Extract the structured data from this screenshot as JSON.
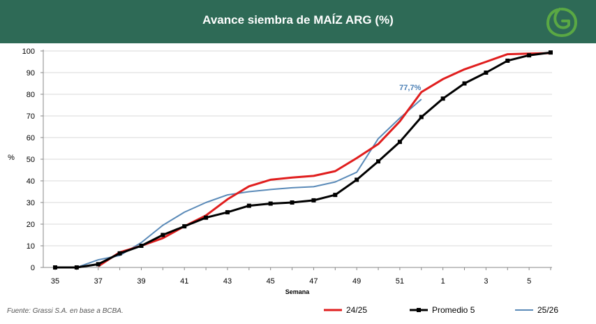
{
  "header": {
    "title": "Avance siembra de MAÍZ ARG (%)",
    "background": "#2e6a56",
    "logo_icon": "leaf-g-logo-icon"
  },
  "source_note": "Fuente: Grassi S.A. en base a BCBA.",
  "chart_data": {
    "type": "line",
    "title": "Avance siembra de MAÍZ ARG (%)",
    "xlabel": "Semana",
    "ylabel": "%",
    "ylim": [
      0,
      100
    ],
    "yticks": [
      0,
      10,
      20,
      30,
      40,
      50,
      60,
      70,
      80,
      90,
      100
    ],
    "x_ticks": [
      "35",
      "37",
      "39",
      "41",
      "43",
      "45",
      "47",
      "49",
      "51",
      "1",
      "3",
      "5"
    ],
    "weeks": [
      "35",
      "36",
      "37",
      "38",
      "39",
      "40",
      "41",
      "42",
      "43",
      "44",
      "45",
      "46",
      "47",
      "48",
      "49",
      "50",
      "51",
      "52",
      "1",
      "2",
      "3",
      "4",
      "5",
      "6"
    ],
    "grid": "horizontal",
    "legend_position": "bottom",
    "series": [
      {
        "name": "24/25",
        "color": "#e01e1e",
        "marker": "none",
        "values": [
          null,
          null,
          0.5,
          7,
          10,
          13.5,
          19,
          24,
          31.5,
          37.5,
          40.5,
          41.5,
          42.3,
          44.5,
          50.5,
          57,
          67.5,
          81,
          87,
          91.5,
          95,
          98.5,
          98.8,
          99
        ]
      },
      {
        "name": "Promedio 5",
        "color": "#000000",
        "marker": "square",
        "values": [
          0,
          0,
          1.5,
          6.5,
          10,
          15,
          19,
          23,
          25.5,
          28.5,
          29.5,
          30,
          31,
          33.5,
          40.5,
          49,
          58,
          69.5,
          78,
          85,
          90,
          95.5,
          98,
          99.3
        ]
      },
      {
        "name": "25/26",
        "color": "#5a8ab8",
        "marker": "none",
        "values": [
          null,
          0,
          3.5,
          5.5,
          11.5,
          19.5,
          25.5,
          30,
          33.5,
          35,
          36,
          36.8,
          37.3,
          39.5,
          44,
          59.5,
          69,
          77.7,
          null,
          null,
          null,
          null,
          null,
          null
        ]
      }
    ],
    "annotations": [
      {
        "text": "77,7%",
        "series": "25/26",
        "week": "52",
        "value": 77.7,
        "color": "#4a7fb5"
      }
    ]
  }
}
